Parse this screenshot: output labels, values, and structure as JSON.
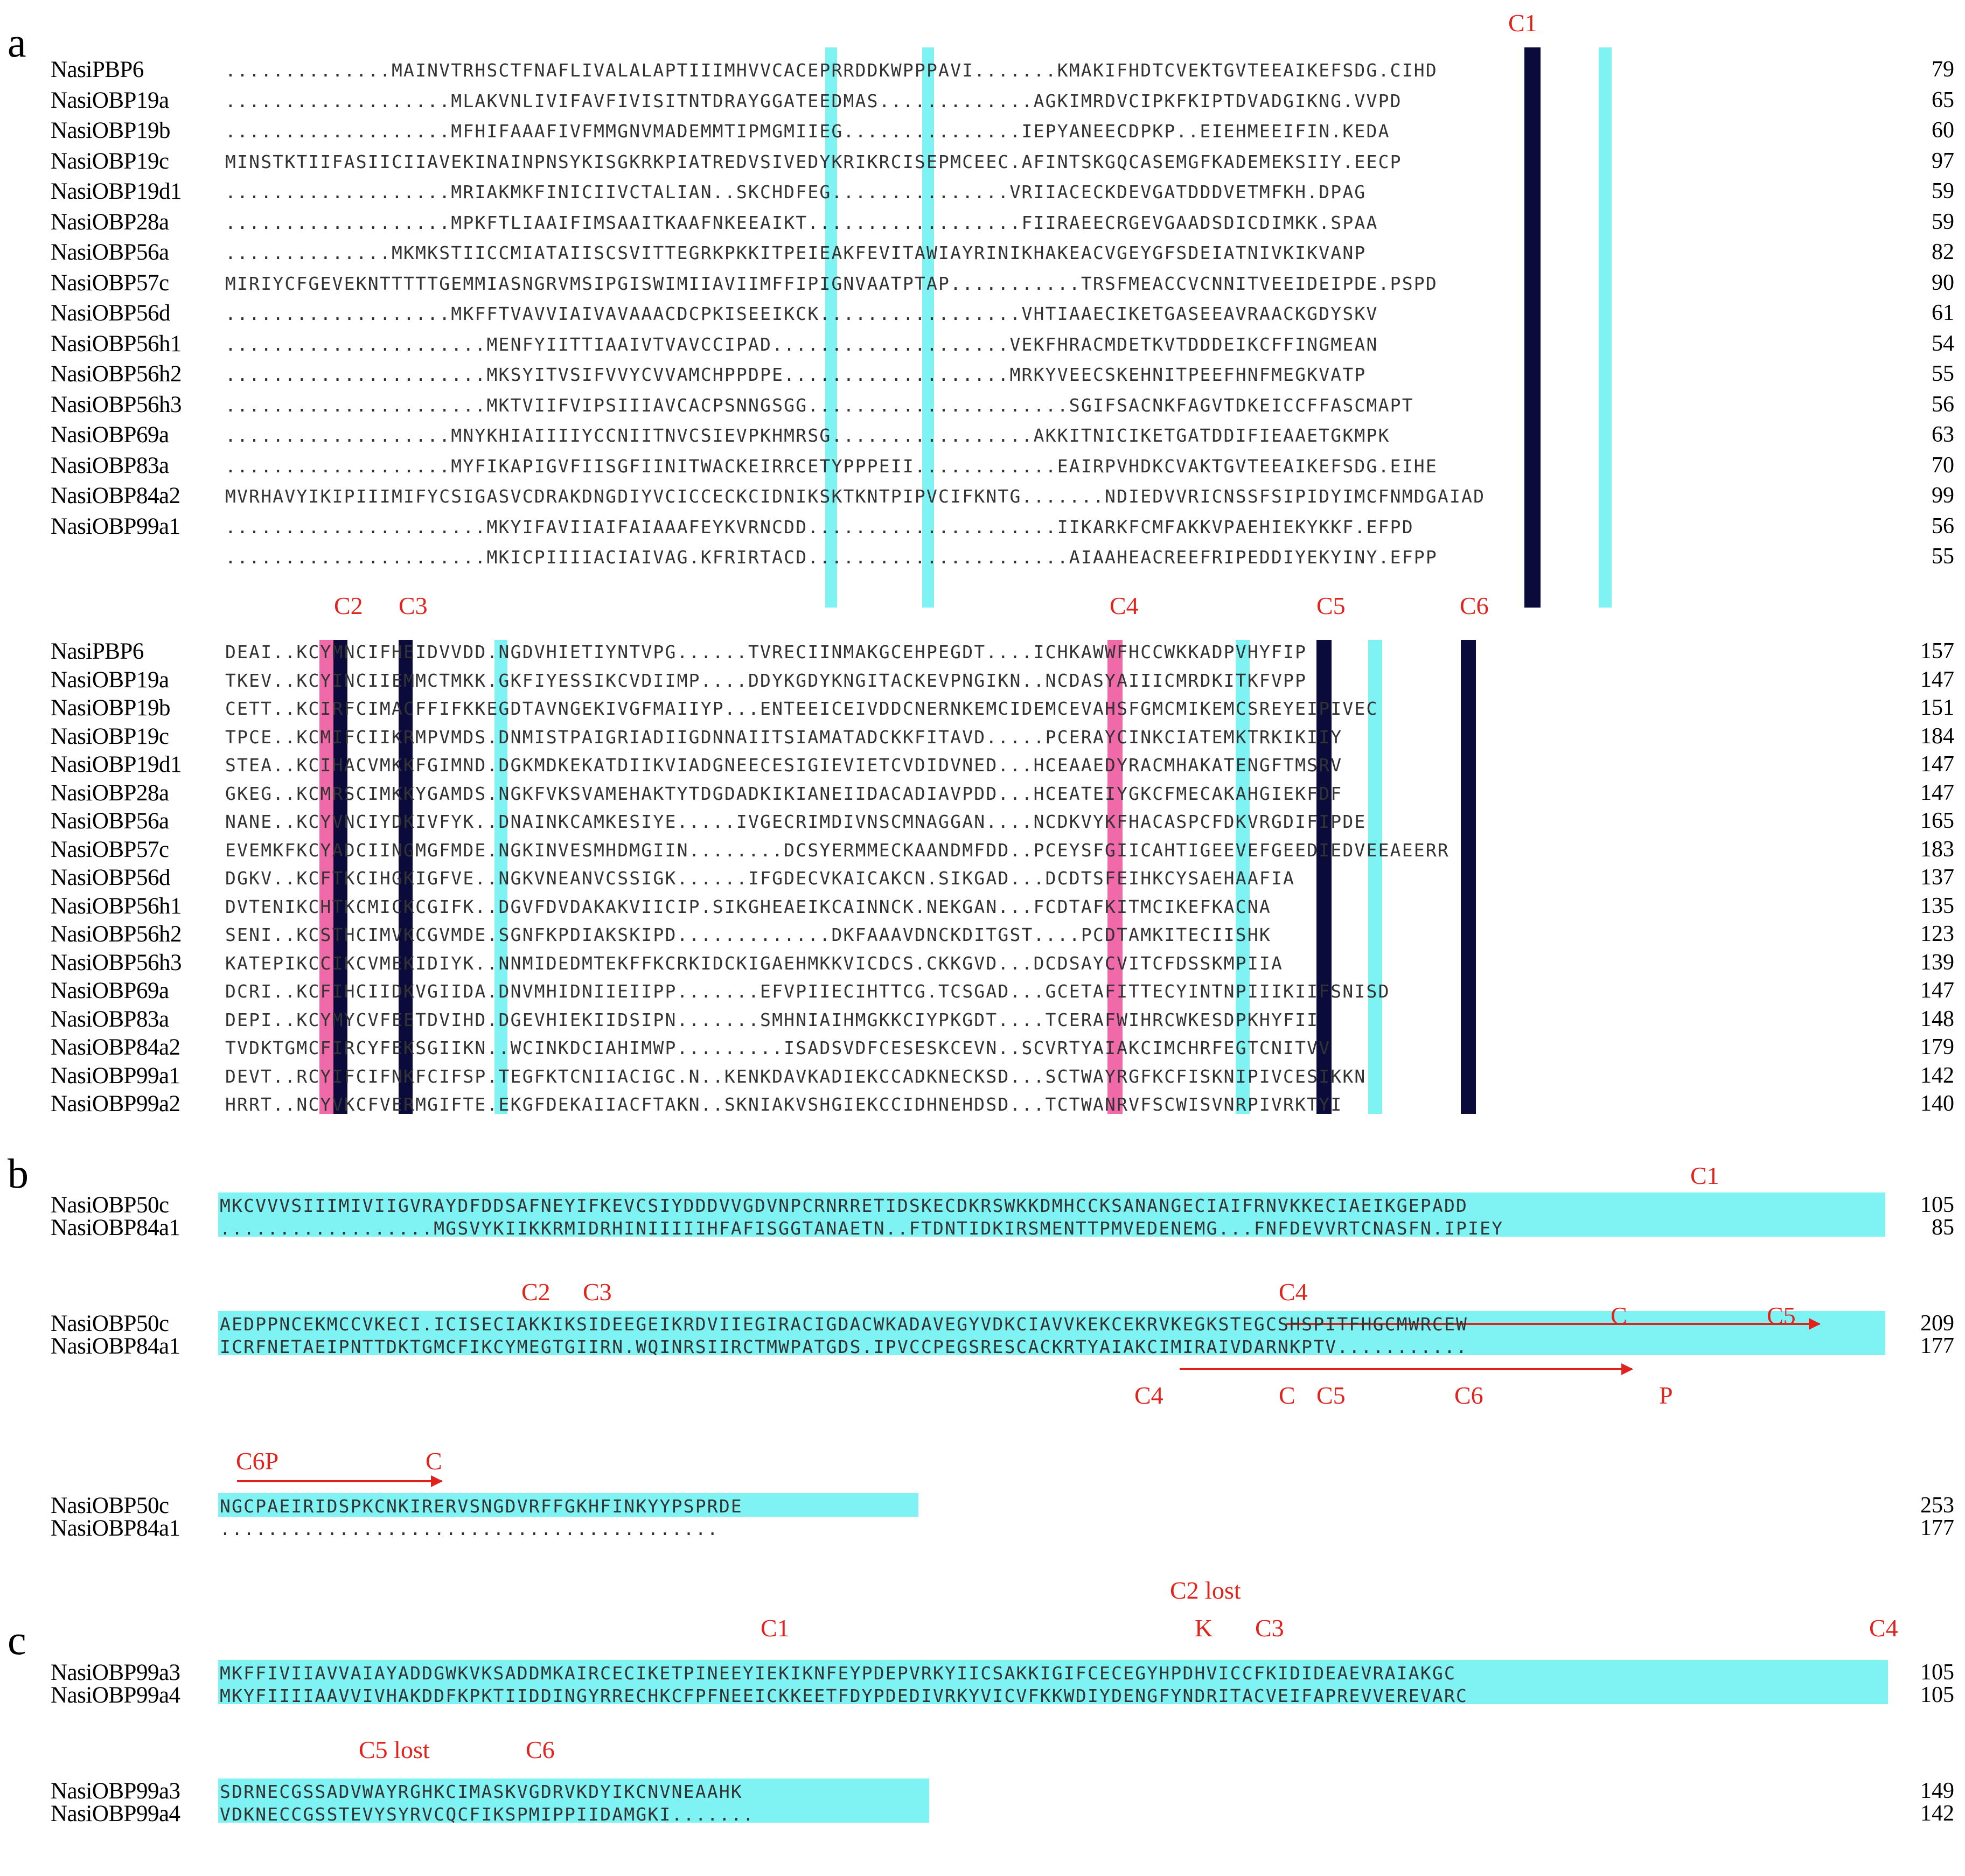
{
  "panels": {
    "a": "a",
    "b": "b",
    "c": "c"
  },
  "colors": {
    "identical": "#0b0b3b",
    "conserved_cys": "#f06aa9",
    "similar": "#7ff3f3",
    "annotation": "#e0231c"
  },
  "panel_a": {
    "block1": {
      "markers": [
        "C1"
      ],
      "rows": [
        {
          "name": "NasiPBP6",
          "seq": "..............MAINVTRHSCTFNAFLIVALALAPTIIIMHVVCACEPRRDDKWPPPAVI.......KMAKIFHDTCVEKTGVTEEAIKEFSDG.CIHD",
          "end": "79"
        },
        {
          "name": "NasiOBP19a",
          "seq": "...................MLAKVNLIVIFAVFIVISITNTDRAYGGATEEDMAS.............AGKIMRDVCIPKFKIPTDVADGIKNG.VVPD",
          "end": "65"
        },
        {
          "name": "NasiOBP19b",
          "seq": "...................MFHIFAAAFIVFMMGNVMADEMMTIPMGMIIEG...............IEPYANEECDPKP..EIEHMEEIFIN.KEDA",
          "end": "60"
        },
        {
          "name": "NasiOBP19c",
          "seq": "MINSTKTIIFASIICIIAVEKINAINPNSYKISGKRKPIATREDVSIVEDYKRIKRCISEPMCEEC.AFINTSKGQCASEMGFKADEMEKSIIY.EECP",
          "end": "97"
        },
        {
          "name": "NasiOBP19d1",
          "seq": "...................MRIAKMKFINICIIVCTALIAN..SKCHDFEG...............VRIIACECKDEVGATDDDVETMFKH.DPAG",
          "end": "59"
        },
        {
          "name": "NasiOBP28a",
          "seq": "...................MPKFTLIAAIFIMSAAITKAAFNKEEAIKT..................FIIRAEECRGEVGAADSDICDIMKK.SPAA",
          "end": "59"
        },
        {
          "name": "NasiOBP56a",
          "seq": "..............MKMKSTIICCMIATAIISCSVITTEGRKPKKITPEIEAKFEVITAWIAYRINIKHAKEACVGEYGFSDEIATNIVKIKVANP",
          "end": "82"
        },
        {
          "name": "NasiOBP57c",
          "seq": "MIRIYCFGEVEKNTTTTTGEMMIASNGRVMSIPGISWIMIIAVIIMFFIPIGNVAATPTAP...........TRSFMEACCVCNNITVEEIDEIPDE.PSPD",
          "end": "90"
        },
        {
          "name": "NasiOBP56d",
          "seq": "...................MKFFTVAVVIAIVAVAAACDCPKISEEIKCK.................VHTIAAECIKETGASEEAVRAACKGDYSKV",
          "end": "61"
        },
        {
          "name": "NasiOBP56h1",
          "seq": "......................MENFYIITTIAAIVTVAVCCIPAD....................VEKFHRACMDETKVTDDDEIKCFFINGMEAN",
          "end": "54"
        },
        {
          "name": "NasiOBP56h2",
          "seq": "......................MKSYITVSIFVVYCVVAMCHPPDPE...................MRKYVEECSKEHNITPEEFHNFMEGKVATP",
          "end": "55"
        },
        {
          "name": "NasiOBP56h3",
          "seq": "......................MKTVIIFVIPSIIIAVCACPSNNGSGG......................SGIFSACNKFAGVTDKEICCFFASCMAPT",
          "end": "56"
        },
        {
          "name": "NasiOBP69a",
          "seq": "...................MNYKHIAIIIIYCCNIITNVCSIEVPKHMRSG.................AKKITNICIKETGATDDIFIEAAETGKMPK",
          "end": "63"
        },
        {
          "name": "NasiOBP83a",
          "seq": "...................MYFIKAPIGVFIISGFIINITWACKEIRRCETYPPPEII............EAIRPVHDKCVAKTGVTEEAIKEFSDG.EIHE",
          "end": "70"
        },
        {
          "name": "NasiOBP84a2",
          "seq": "MVRHAVYIKIPIIIMIFYCSIGASVCDRAKDNGDIYVCICCECKCIDNIKSKTKNTPIPVCIFKNTG.......NDIEDVVRICNSSFSIPIDYIMCFNMDGAIAD",
          "end": "99"
        },
        {
          "name": "NasiOBP99a1",
          "seq": "......................MKYIFAVIIAIFAIAAAFEYKVRNCDD.....................IIKARKFCMFAKKVPAEHIEKYKKF.EFPD",
          "end": "56"
        },
        {
          "name": "",
          "seq": "......................MKICPIIIIACIAIVAG.KFRIRTACD......................AIAAHEACREEFRIPEDDIYEKYINY.EFPP",
          "end": "55"
        }
      ]
    },
    "block2": {
      "markers": [
        "C2",
        "C3",
        "C4",
        "C5",
        "C6"
      ],
      "rows": [
        {
          "name": "NasiPBP6",
          "seq": "DEAI..KCYMNCIFHEIDVVDD.NGDVHIETIYNTVPG......TVRECIINMAKGCEHPEGDT....ICHKAWWFHCCWKKADPVHYFIP",
          "end": "157"
        },
        {
          "name": "NasiOBP19a",
          "seq": "TKEV..KCYINCIIEMMCTMKK.GKFIYESSIKCVDIIMP....DDYKGDYKNGITACKEVPNGIKN..NCDASYAIIICMRDKITKFVPP",
          "end": "147"
        },
        {
          "name": "NasiOBP19b",
          "seq": "CETT..KCIRFCIMACFFIFKKEGDTAVNGEKIVGFMAIIYP...ENTEEICEIVDDCNERNKEMCIDEMCEVAHSFGMCMIKEMCSREYEIPIVEC",
          "end": "151"
        },
        {
          "name": "NasiOBP19c",
          "seq": "TPCE..KCMIFCIIKRMPVMDS.DNMISTPAIGRIADIIGDNNAIITSIAMATADCKKFITAVD.....PCERAYCINKCIATEMKTRKIKIIY",
          "end": "184"
        },
        {
          "name": "NasiOBP19d1",
          "seq": "STEA..KCIHACVMKKFGIMND.DGKMDKEKATDIIKVIADGNEECESIGIEVIETCVDIDVNED...HCEAAEDYRACMHAKATENGFTMSRV",
          "end": "147"
        },
        {
          "name": "NasiOBP28a",
          "seq": "GKEG..KCMRSCIMKKYGAMDS.NGKFVKSVAMEHAKTYTDGDADKIKIANEIIDACADIAVPDD...HCEATEIYGKCFMECAKAHGIEKFDF",
          "end": "147"
        },
        {
          "name": "NasiOBP56a",
          "seq": "NANE..KCYVNCIYDKIVFYK..DNAINKCAMKESIYE.....IVGECRIMDIVNSCMNAGGAN....NCDKVYKFHACASPCFDKVRGDIFIPDE",
          "end": "165"
        },
        {
          "name": "NasiOBP57c",
          "seq": "EVEMKFKCYADCIINGMGFMDE.NGKINVESMHDMGIIN........DCSYERMMECKAANDMFDD..PCEYSFGIICAHTIGEEVEFGEEDIEDVEEAEERR",
          "end": "183"
        },
        {
          "name": "NasiOBP56d",
          "seq": "DGKV..KCFTKCIHGKIGFVE..NGKVNEANVCSSIGK......IFGDECVKAICAKCN.SIKGAD...DCDTSFEIHKCYSAEHAAFIA",
          "end": "137"
        },
        {
          "name": "NasiOBP56h1",
          "seq": "DVTENIKCHTKCMICKCGIFK..DGVFDVDAKAKVIICIP.SIKGHEAEIKCAINNCK.NEKGAN...FCDTAFKITMCIKEFKACNA",
          "end": "135"
        },
        {
          "name": "NasiOBP56h2",
          "seq": "SENI..KCSTHCIMVKCGVMDE.SGNFKPDIAKSKIPD.............DKFAAAVDNCKDITGST....PCDTAMKITECIISHK",
          "end": "123"
        },
        {
          "name": "NasiOBP56h3",
          "seq": "KATEPIKCCIKCVMEKIDIYK..NNMIDEDMTEKFFKCRKIDCKIGAEHMKKVICDCS.CKKGVD...DCDSAYCVITCFDSSKMPIIA",
          "end": "139"
        },
        {
          "name": "NasiOBP69a",
          "seq": "DCRI..KCFIHCIIDKVGIIDA.DNVMHIDNIIEIIPP.......EFVPIIECIHTTCG.TCSGAD...GCETAFITTECYINTNPIIIKIIFSNISD",
          "end": "147"
        },
        {
          "name": "NasiOBP83a",
          "seq": "DEPI..KCYMYCVFEETDVIHD.DGEVHIEKIIDSIPN.......SMHNIAIHMGKKCIYPKGDT....TCERAFWIHRCWKESDPKHYFII",
          "end": "148"
        },
        {
          "name": "NasiOBP84a2",
          "seq": "TVDKTGMCFIRCYFEKSGIIKN..WCINKDCIAHIMWP.........ISADSVDFCESESKCEVN..SCVRTYAIAKCIMCHRFEGTCNITVV",
          "end": "179"
        },
        {
          "name": "NasiOBP99a1",
          "seq": "DEVT..RCYIFCIFNKFCIFSP.TEGFKTCNIIACIGC.N..KENKDAVKADIEKCCADKNECKSD...SCTWAYRGFKCFISKNIPIVCESIKKN",
          "end": "142"
        },
        {
          "name": "NasiOBP99a2",
          "seq": "HRRT..NCYVKCFVERMGIFTE.EKGFDEKAIIACFTAKN..SKNIAKVSHGIEKCCIDHNEHDSD...TCTWANRVFSCWISVNRPIVRKTYI",
          "end": "140"
        }
      ]
    }
  },
  "panel_b": {
    "block1": {
      "marker": "C1",
      "rows": [
        {
          "name": "NasiOBP50c",
          "seq": "MKCVVVSIIIMIVIIGVRAYDFDDSAFNEYIFKEVCSIYDDDVVGDVNPCRNRRETIDSKECDKRSWKKDMHCCKSANANGECIAIFRNVKKECIAEIKGEPADD",
          "end": "105"
        },
        {
          "name": "NasiOBP84a1",
          "seq": "..................MGSVYKIIKKRMIDRHINIIIIIHFAFISGGTANAETN..FTDNTIDKIRSMENTTPMVEDENEMG...FNFDEVVRTCNASFN.IPIEY",
          "end": "85"
        }
      ]
    },
    "block2": {
      "markers": {
        "c2": "C2",
        "c3": "C3",
        "c4_top": "C4",
        "c_top": "C",
        "c5_top": "C5",
        "c4_bot": "C4",
        "c_bot": "C",
        "c5_bot": "C5",
        "c6_bot": "C6",
        "p_bot": "P"
      },
      "rows": [
        {
          "name": "NasiOBP50c",
          "seq": "AEDPPNCEKMCCVKECI.ICISECIAKKIKSIDEEGEIKRDVIIEGIRACIGDACWKADAVEGYVDKCIAVVKEKCEKRVKEGKSTEGCSHSPITFHGCMWRCEW",
          "end": "209"
        },
        {
          "name": "NasiOBP84a1",
          "seq": "ICRFNETAEIPNTTDKTGMCFIKCYMEGTGIIRN.WQINRSIIRCTMWPATGDS.IPVCCPEGSRESCACKRTYAIAKCIMIRAIVDARNKPTV...........",
          "end": "177"
        }
      ]
    },
    "block3": {
      "markers": {
        "c6p": "C6P",
        "c": "C"
      },
      "rows": [
        {
          "name": "NasiOBP50c",
          "seq": "NGCPAEIRIDSPKCNKIRERVSNGDVRFFGKHFINKYYPSPRDE",
          "end": "253"
        },
        {
          "name": "NasiOBP84a1",
          "seq": "..........................................",
          "end": "177"
        }
      ]
    }
  },
  "panel_c": {
    "block1": {
      "markers": {
        "c1": "C1",
        "c2lost": "C2 lost",
        "k": "K",
        "c3": "C3",
        "c4": "C4"
      },
      "rows": [
        {
          "name": "NasiOBP99a3",
          "seq": "MKFFIVIIAVVAIAYADDGWKVKSADDMKAIRCECIKETPINEEYIEKIKNFEYPDEPVRKYIICSAKKIGIFCECEGYHPDHVICCFKIDIDEAEVRAIAKGC",
          "end": "105"
        },
        {
          "name": "NasiOBP99a4",
          "seq": "MKYFIIIIAAVVIVHAKDDFKPKTIIDDINGYRRECHKCFPFNEEICKKEETFDYPDEDIVRKYVICVFKKWDIYDENGFYNDRITACVEIFAPREVVEREVARC",
          "end": "105"
        }
      ]
    },
    "block2": {
      "markers": {
        "c5lost": "C5 lost",
        "c6": "C6"
      },
      "rows": [
        {
          "name": "NasiOBP99a3",
          "seq": "SDRNECGSSADVWAYRGHKCIMASKVGDRVKDYIKCNVNEAAHK",
          "end": "149"
        },
        {
          "name": "NasiOBP99a4",
          "seq": "VDKNECCGSSTEVYSYRVCQCFIKSPMIPPIIDAMGKI.......",
          "end": "142"
        }
      ]
    }
  }
}
